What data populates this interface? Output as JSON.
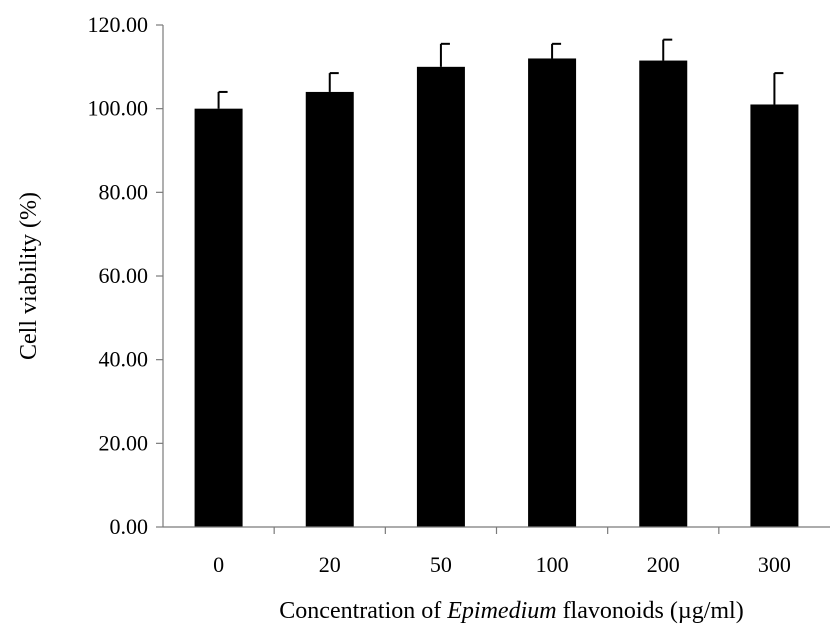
{
  "chart_data": {
    "type": "bar",
    "categories": [
      "0",
      "20",
      "50",
      "100",
      "200",
      "300"
    ],
    "values": [
      100.0,
      104.0,
      110.0,
      112.0,
      111.5,
      101.0
    ],
    "errors": [
      4.0,
      4.5,
      5.5,
      3.5,
      5.0,
      7.5
    ],
    "ylim": [
      0,
      120
    ],
    "yticks": [
      "0.00",
      "20.00",
      "40.00",
      "60.00",
      "80.00",
      "100.00",
      "120.00"
    ],
    "ylabel": "Cell viability (%)",
    "xlabel": {
      "prefix": "Concentration of ",
      "italic": "Epimedium",
      "suffix": "  flavonoids (µg/ml)"
    },
    "bar_color": "#000000",
    "grid": false
  }
}
